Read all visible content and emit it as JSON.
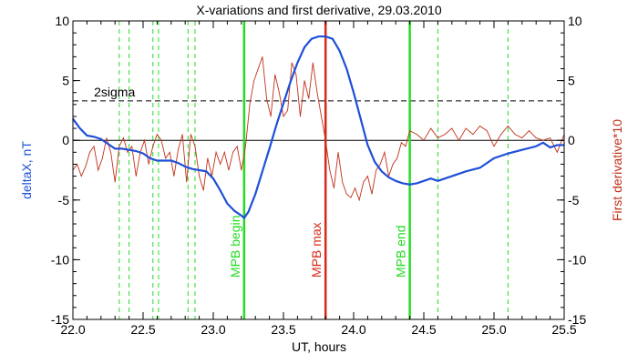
{
  "chart_data": {
    "type": "line",
    "title": "X-variations and first derivative, 29.03.2010",
    "xlabel": "UT, hours",
    "ylabel_left": "deltaX, nT",
    "ylabel_right": "First derivative*10",
    "xlim": [
      22.0,
      25.5
    ],
    "ylim_left": [
      -15,
      10
    ],
    "ylim_right": [
      -15,
      10
    ],
    "x_ticks": [
      "22.0",
      "22.5",
      "23.0",
      "23.5",
      "24.0",
      "24.5",
      "25.0",
      "25.5"
    ],
    "y_ticks": [
      "-15",
      "-10",
      "-5",
      "0",
      "5",
      "10"
    ],
    "sigma_label": "2sigma",
    "sigma_level": 3.3,
    "zero_level": 0,
    "colors": {
      "deltaX": "#1f4fd8",
      "derivative": "#c0301a",
      "boundary": "#22dd22",
      "max": "#d42a1a",
      "axes": "#000000"
    },
    "markers": [
      {
        "label": "MPB begin",
        "x": 23.22,
        "color": "#22dd22"
      },
      {
        "label": "MPB max",
        "x": 23.8,
        "color": "#d42a1a"
      },
      {
        "label": "MPB end",
        "x": 24.4,
        "color": "#22dd22"
      }
    ],
    "dashed_lines": [
      22.33,
      22.4,
      22.57,
      22.61,
      22.82,
      22.87,
      24.6,
      25.1
    ],
    "series": [
      {
        "name": "deltaX",
        "axis": "left",
        "x": [
          22.0,
          22.05,
          22.1,
          22.15,
          22.2,
          22.25,
          22.3,
          22.35,
          22.4,
          22.45,
          22.5,
          22.55,
          22.6,
          22.65,
          22.7,
          22.75,
          22.8,
          22.85,
          22.9,
          22.95,
          23.0,
          23.05,
          23.1,
          23.15,
          23.2,
          23.22,
          23.25,
          23.3,
          23.35,
          23.4,
          23.45,
          23.5,
          23.55,
          23.6,
          23.65,
          23.7,
          23.75,
          23.8,
          23.85,
          23.9,
          23.95,
          24.0,
          24.05,
          24.1,
          24.15,
          24.2,
          24.25,
          24.3,
          24.35,
          24.4,
          24.45,
          24.5,
          24.55,
          24.6,
          24.7,
          24.8,
          24.9,
          25.0,
          25.1,
          25.2,
          25.3,
          25.35,
          25.4,
          25.45,
          25.5
        ],
        "values": [
          1.8,
          1.0,
          0.4,
          0.3,
          0.1,
          -0.3,
          -0.7,
          -0.7,
          -0.8,
          -0.9,
          -1.1,
          -1.5,
          -1.7,
          -1.7,
          -1.7,
          -1.9,
          -2.2,
          -2.4,
          -2.5,
          -2.6,
          -3.2,
          -4.2,
          -5.3,
          -5.9,
          -6.3,
          -6.5,
          -6.0,
          -4.5,
          -2.6,
          -0.7,
          1.3,
          3.1,
          4.9,
          6.5,
          7.8,
          8.5,
          8.7,
          8.7,
          8.5,
          7.5,
          6.0,
          4.0,
          1.8,
          -0.4,
          -1.8,
          -2.6,
          -3.1,
          -3.4,
          -3.6,
          -3.7,
          -3.6,
          -3.4,
          -3.2,
          -3.4,
          -3.0,
          -2.6,
          -2.3,
          -1.5,
          -1.1,
          -0.8,
          -0.5,
          -0.2,
          -0.6,
          -0.4,
          -0.4
        ]
      },
      {
        "name": "First derivative*10",
        "axis": "right",
        "x": [
          22.0,
          22.03,
          22.06,
          22.09,
          22.12,
          22.15,
          22.18,
          22.21,
          22.24,
          22.27,
          22.3,
          22.33,
          22.36,
          22.39,
          22.42,
          22.45,
          22.48,
          22.51,
          22.54,
          22.57,
          22.6,
          22.63,
          22.66,
          22.69,
          22.72,
          22.75,
          22.78,
          22.81,
          22.84,
          22.87,
          22.9,
          22.93,
          22.96,
          22.99,
          23.02,
          23.05,
          23.08,
          23.11,
          23.14,
          23.17,
          23.2,
          23.23,
          23.26,
          23.29,
          23.32,
          23.35,
          23.38,
          23.41,
          23.44,
          23.47,
          23.5,
          23.53,
          23.56,
          23.59,
          23.62,
          23.65,
          23.68,
          23.71,
          23.74,
          23.77,
          23.8,
          23.83,
          23.86,
          23.89,
          23.92,
          23.95,
          23.98,
          24.01,
          24.04,
          24.07,
          24.1,
          24.13,
          24.16,
          24.19,
          24.22,
          24.25,
          24.28,
          24.31,
          24.34,
          24.37,
          24.4,
          24.45,
          24.5,
          24.55,
          24.6,
          24.65,
          24.7,
          24.75,
          24.8,
          24.85,
          24.9,
          24.95,
          25.0,
          25.05,
          25.1,
          25.15,
          25.2,
          25.25,
          25.3,
          25.35,
          25.4,
          25.45,
          25.5
        ],
        "values": [
          -2.5,
          -2.0,
          -3.0,
          -2.2,
          -1.0,
          -0.5,
          -2.5,
          -1.5,
          0.2,
          -1.0,
          -3.5,
          -0.5,
          0.2,
          -1.0,
          -0.5,
          -3.0,
          -1.0,
          0.0,
          -2.0,
          -0.5,
          0.5,
          0.0,
          -1.5,
          -1.0,
          -3.0,
          -0.8,
          0.5,
          -3.5,
          0.5,
          -0.5,
          -3.0,
          -4.2,
          -1.5,
          -3.0,
          -1.0,
          -2.0,
          -1.0,
          -2.5,
          -1.0,
          -0.5,
          -2.5,
          -0.5,
          3.0,
          5.0,
          6.0,
          7.0,
          3.5,
          2.0,
          5.5,
          4.0,
          2.0,
          2.5,
          6.5,
          5.5,
          2.0,
          5.0,
          3.5,
          6.5,
          4.0,
          2.0,
          0.0,
          -2.5,
          -4.0,
          -1.0,
          -3.5,
          -4.5,
          -4.8,
          -4.0,
          -5.0,
          -3.5,
          -3.0,
          -4.5,
          -2.5,
          -2.0,
          -1.0,
          -3.0,
          -2.0,
          -1.5,
          -0.2,
          -0.5,
          0.8,
          0.5,
          0.0,
          1.0,
          0.2,
          0.5,
          1.0,
          0.0,
          1.0,
          0.5,
          1.2,
          0.8,
          -0.5,
          0.5,
          1.2,
          0.5,
          0.2,
          0.8,
          0.2,
          0.0,
          0.2,
          -1.0,
          0.5
        ]
      }
    ]
  }
}
